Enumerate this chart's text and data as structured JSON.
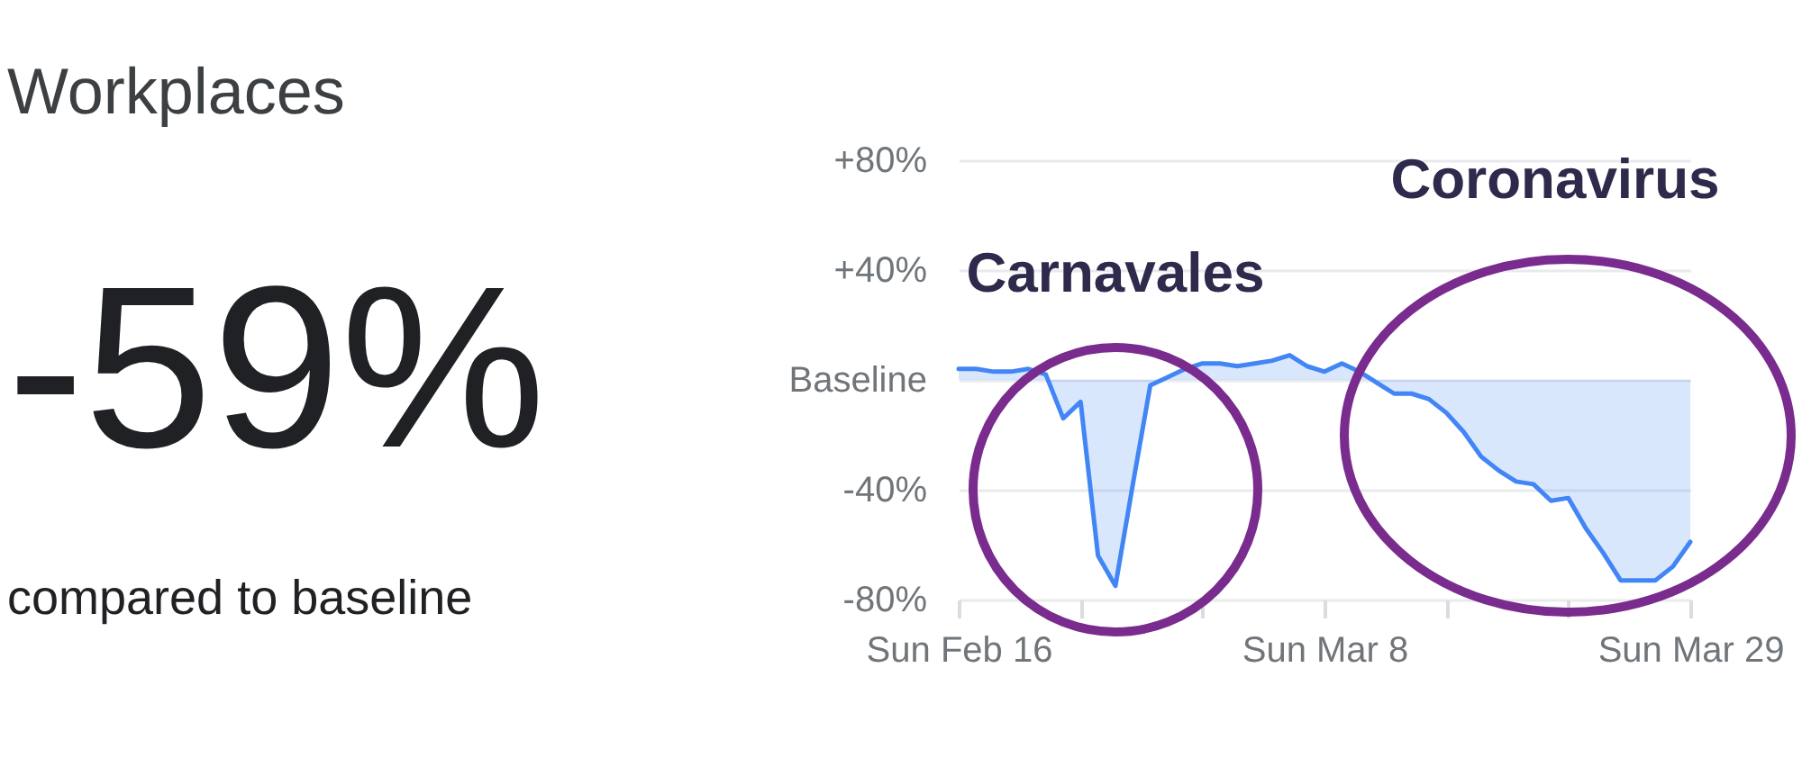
{
  "chart_data": {
    "type": "area",
    "title": "Workplaces",
    "subtitle": "-59%",
    "annotations": [
      "compared to baseline",
      "Carnavales",
      "Coronavirus"
    ],
    "x": [
      "--02-16",
      "--02-17",
      "--02-18",
      "--02-19",
      "--02-20",
      "--02-21",
      "--02-22",
      "--02-23",
      "--02-24",
      "--02-25",
      "--02-26",
      "--02-27",
      "--02-28",
      "--02-29",
      "--03-01",
      "--03-02",
      "--03-03",
      "--03-04",
      "--03-05",
      "--03-06",
      "--03-07",
      "--03-08",
      "--03-09",
      "--03-10",
      "--03-11",
      "--03-12",
      "--03-13",
      "--03-14",
      "--03-15",
      "--03-16",
      "--03-17",
      "--03-18",
      "--03-19",
      "--03-20",
      "--03-21",
      "--03-22",
      "--03-23",
      "--03-24",
      "--03-25",
      "--03-26",
      "--03-27",
      "--03-28",
      "--03-29"
    ],
    "series": [
      {
        "color": "#4285f4",
        "values": [
          4,
          4,
          3,
          3,
          4,
          2,
          -14,
          -8,
          -64,
          -75,
          -38,
          -2,
          1,
          4,
          6,
          6,
          5,
          6,
          7,
          9,
          5,
          3,
          6,
          3,
          -1,
          -5,
          -5,
          -7,
          -12,
          -19,
          -28,
          -33,
          -37,
          -38,
          -44,
          -43,
          -54,
          -63,
          -73,
          -73,
          -73,
          -68,
          -59
        ]
      }
    ],
    "xlim": [
      "--02-16",
      "--03-29"
    ],
    "xticks": [
      {
        "value": "--02-16",
        "label": "Sun Feb 16"
      },
      {
        "value": "--02-23",
        "label": null
      },
      {
        "value": "--03-01",
        "label": null
      },
      {
        "value": "--03-08",
        "label": "Sun Mar 8"
      },
      {
        "value": "--03-15",
        "label": null
      },
      {
        "value": "--03-22",
        "label": null
      },
      {
        "value": "--03-29",
        "label": "Sun Mar 29"
      }
    ],
    "ylim": [
      -80,
      80
    ],
    "yticks": [
      {
        "value": 80,
        "label": "+80%"
      },
      {
        "value": 40,
        "label": "+40%"
      },
      {
        "value": 0,
        "label": "Baseline"
      },
      {
        "value": -40,
        "label": "-40%"
      },
      {
        "value": -80,
        "label": "-80%"
      }
    ],
    "grid": "y"
  }
}
